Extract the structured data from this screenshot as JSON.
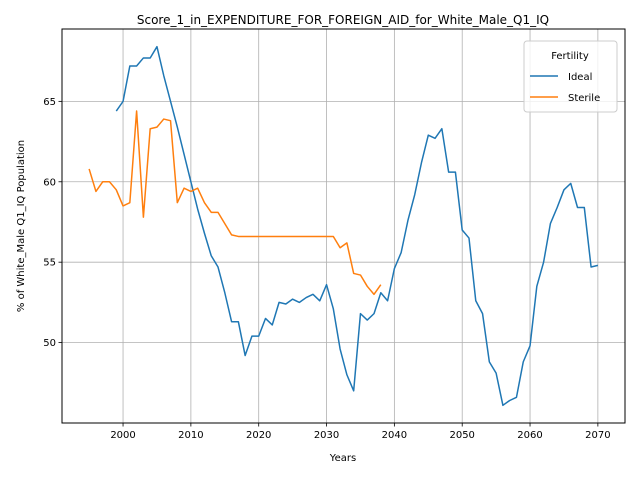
{
  "chart_data": {
    "type": "line",
    "title": "Score_1_in_EXPENDITURE_FOR_FOREIGN_AID_for_White_Male_Q1_IQ",
    "xlabel": "Years",
    "ylabel": "% of White_Male Q1_IQ Population",
    "xlim": [
      1991,
      2074
    ],
    "ylim": [
      45,
      69.5
    ],
    "xticks": [
      2000,
      2010,
      2020,
      2030,
      2040,
      2050,
      2060,
      2070
    ],
    "yticks": [
      50,
      55,
      60,
      65
    ],
    "grid": true,
    "legend": {
      "title": "Fertility",
      "placement": "top-right"
    },
    "series": [
      {
        "name": "Ideal",
        "color": "#1f77b4",
        "x": [
          1999,
          2000,
          2001,
          2002,
          2003,
          2004,
          2005,
          2006,
          2007,
          2008,
          2009,
          2010,
          2011,
          2012,
          2013,
          2014,
          2015,
          2016,
          2017,
          2018,
          2019,
          2020,
          2021,
          2022,
          2023,
          2024,
          2025,
          2026,
          2027,
          2028,
          2029,
          2030,
          2031,
          2032,
          2033,
          2034,
          2035,
          2036,
          2037,
          2038,
          2039,
          2040,
          2041,
          2042,
          2043,
          2044,
          2045,
          2046,
          2047,
          2048,
          2049,
          2050,
          2051,
          2052,
          2053,
          2054,
          2055,
          2056,
          2057,
          2058,
          2059,
          2060,
          2061,
          2062,
          2063,
          2064,
          2065,
          2066,
          2067,
          2068,
          2069,
          2070
        ],
        "values": [
          64.4,
          65.0,
          67.2,
          67.2,
          67.7,
          67.7,
          68.4,
          66.6,
          65.0,
          63.4,
          61.7,
          60.0,
          58.3,
          56.8,
          55.4,
          54.7,
          53.1,
          51.3,
          51.3,
          49.2,
          50.4,
          50.4,
          51.5,
          51.1,
          52.5,
          52.4,
          52.7,
          52.5,
          52.8,
          53.0,
          52.6,
          53.6,
          52.1,
          49.6,
          48.0,
          47.0,
          51.8,
          51.4,
          51.8,
          53.1,
          52.6,
          54.6,
          55.6,
          57.6,
          59.2,
          61.2,
          62.9,
          62.7,
          63.3,
          60.6,
          60.6,
          57.0,
          56.5,
          52.6,
          51.8,
          48.8,
          48.1,
          46.1,
          46.4,
          46.6,
          48.8,
          49.8,
          53.5,
          55.0,
          57.4,
          58.4,
          59.5,
          59.9,
          58.4,
          58.4,
          54.7,
          54.8
        ]
      },
      {
        "name": "Sterile",
        "color": "#ff7f0e",
        "x": [
          1995,
          1996,
          1997,
          1998,
          1999,
          2000,
          2001,
          2002,
          2003,
          2004,
          2005,
          2006,
          2007,
          2008,
          2009,
          2010,
          2011,
          2012,
          2013,
          2014,
          2015,
          2016,
          2017,
          2018,
          2019,
          2020,
          2021,
          2022,
          2023,
          2024,
          2025,
          2026,
          2027,
          2028,
          2029,
          2030,
          2031,
          2032,
          2033,
          2034,
          2035,
          2036,
          2037,
          2038
        ],
        "values": [
          60.8,
          59.4,
          60.0,
          60.0,
          59.5,
          58.5,
          58.7,
          64.4,
          57.8,
          63.3,
          63.4,
          63.9,
          63.8,
          58.7,
          59.6,
          59.4,
          59.6,
          58.7,
          58.1,
          58.1,
          57.4,
          56.7,
          56.6,
          56.6,
          56.6,
          56.6,
          56.6,
          56.6,
          56.6,
          56.6,
          56.6,
          56.6,
          56.6,
          56.6,
          56.6,
          56.6,
          56.6,
          55.9,
          56.2,
          54.3,
          54.2,
          53.5,
          53.0,
          53.6
        ]
      }
    ]
  }
}
